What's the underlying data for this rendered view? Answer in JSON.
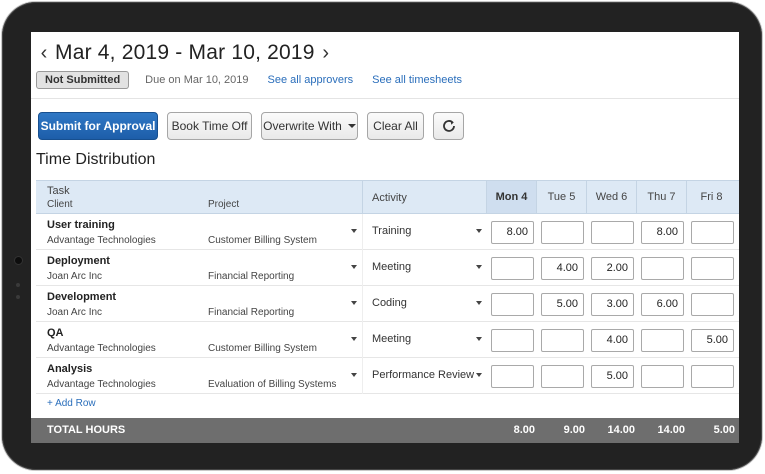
{
  "header": {
    "prev_arrow": "‹",
    "next_arrow": "›",
    "date_range": "Mar 4, 2019 - Mar 10, 2019"
  },
  "status": {
    "badge": "Not Submitted",
    "due": "Due on Mar 10, 2019",
    "approvers_link": "See all approvers",
    "timesheets_link": "See all timesheets"
  },
  "toolbar": {
    "submit": "Submit for Approval",
    "book_time_off": "Book Time Off",
    "overwrite_with": "Overwrite With",
    "clear_all": "Clear All",
    "refresh_icon": "refresh-icon"
  },
  "section_title": "Time Distribution",
  "table": {
    "headers": {
      "task": "Task",
      "client": "Client",
      "project": "Project",
      "activity": "Activity",
      "days": [
        "Mon 4",
        "Tue 5",
        "Wed 6",
        "Thu 7",
        "Fri 8"
      ]
    },
    "rows": [
      {
        "task": "User training",
        "client": "Advantage Technologies",
        "project": "Customer Billing System",
        "activity": "Training",
        "hours": [
          "8.00",
          "",
          "",
          "8.00",
          ""
        ]
      },
      {
        "task": "Deployment",
        "client": "Joan Arc Inc",
        "project": "Financial Reporting",
        "activity": "Meeting",
        "hours": [
          "",
          "4.00",
          "2.00",
          "",
          ""
        ]
      },
      {
        "task": "Development",
        "client": "Joan Arc Inc",
        "project": "Financial Reporting",
        "activity": "Coding",
        "hours": [
          "",
          "5.00",
          "3.00",
          "6.00",
          ""
        ]
      },
      {
        "task": "QA",
        "client": "Advantage Technologies",
        "project": "Customer Billing System",
        "activity": "Meeting",
        "hours": [
          "",
          "",
          "4.00",
          "",
          "5.00"
        ]
      },
      {
        "task": "Analysis",
        "client": "Advantage Technologies",
        "project": "Evaluation of Billing Systems",
        "activity": "Performance Review",
        "hours": [
          "",
          "",
          "5.00",
          "",
          ""
        ]
      }
    ],
    "add_row": "+ Add Row"
  },
  "totals": {
    "label": "TOTAL HOURS",
    "values": [
      "8.00",
      "9.00",
      "14.00",
      "14.00",
      "5.00"
    ]
  },
  "colors": {
    "primary": "#1d5ea9",
    "link": "#2a6ebb",
    "header_bg": "#dde9f5",
    "total_bg": "#6e6e6e"
  }
}
